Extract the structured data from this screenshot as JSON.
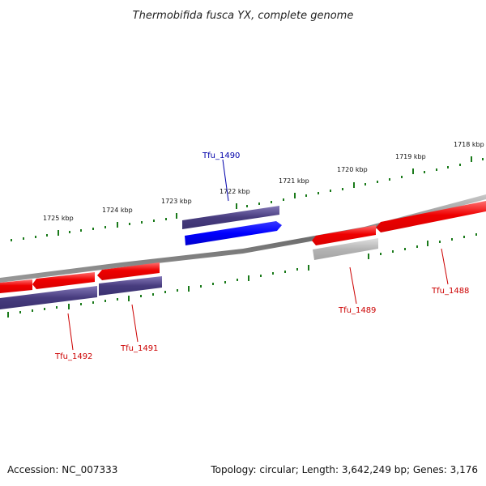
{
  "title": "Thermobifida fusca YX, complete genome",
  "ticks": [
    {
      "label": "1718 kbp"
    },
    {
      "label": "1719 kbp"
    },
    {
      "label": "1720 kbp"
    },
    {
      "label": "1721 kbp"
    },
    {
      "label": "1722 kbp"
    },
    {
      "label": "1723 kbp"
    },
    {
      "label": "1724 kbp"
    },
    {
      "label": "1725 kbp"
    }
  ],
  "genes": [
    {
      "label": "Tfu_1490",
      "color": "#0000aa"
    },
    {
      "label": "Tfu_1489",
      "color": "#cc0000"
    },
    {
      "label": "Tfu_1488",
      "color": "#cc0000"
    },
    {
      "label": "Tfu_1491",
      "color": "#cc0000"
    },
    {
      "label": "Tfu_1492",
      "color": "#cc0000"
    }
  ],
  "colors": {
    "backbone": "#888888",
    "forward_strand": "#0000ff",
    "reverse_strand": "#ee1111",
    "orf": "#4a3f80",
    "pseudo": "#b8b8b8",
    "ticks": "#1a7a1a"
  },
  "footer": {
    "accession": "Accession: NC_007333",
    "summary": "Topology: circular; Length: 3,642,249 bp; Genes: 3,176"
  }
}
